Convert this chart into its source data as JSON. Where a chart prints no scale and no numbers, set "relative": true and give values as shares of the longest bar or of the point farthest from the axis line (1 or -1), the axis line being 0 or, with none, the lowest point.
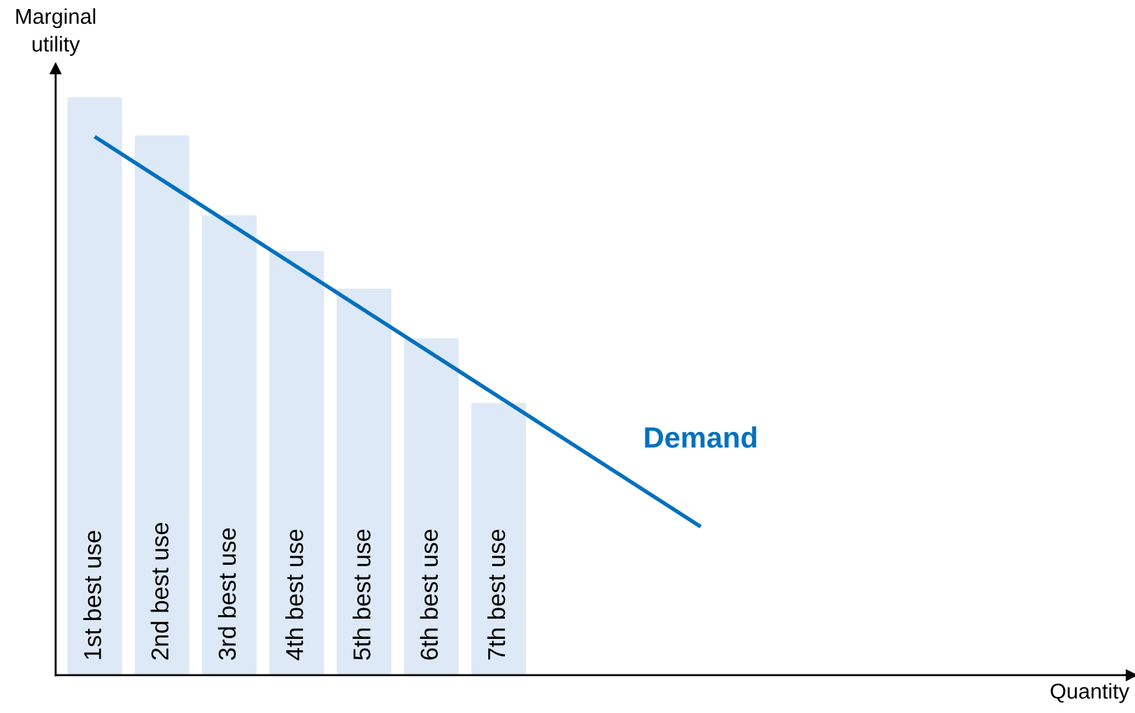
{
  "chart_data": {
    "type": "bar",
    "relative": true,
    "annotations": [
      "Quantity"
    ],
    "ylabel": "Marginal utility",
    "categories": [
      "1st best use",
      "2nd best use",
      "3rd best use",
      "4th best use",
      "5th best use",
      "6th best use",
      "7th best use",
      null,
      null,
      null
    ],
    "series": [
      {
        "color": "#dde9f6",
        "values": [
          1,
          0.934,
          0.796,
          0.734,
          0.669,
          0.583,
          0.471,
          null,
          null,
          null
        ]
      },
      {
        "type": "line",
        "name": "Demand",
        "color": "#0070c0",
        "values": [
          0.932,
          0.857,
          0.782,
          0.707,
          0.632,
          0.557,
          0.482,
          0.407,
          0.332,
          0.257
        ]
      }
    ]
  }
}
